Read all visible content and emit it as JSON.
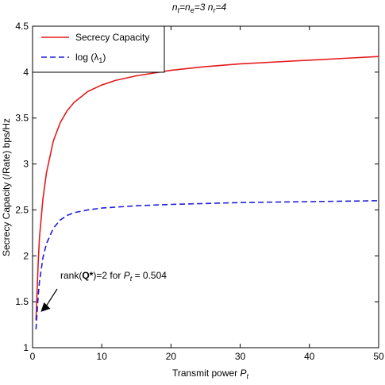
{
  "chart_data": {
    "type": "line",
    "title": "n_t=n_e=3  n_r=4",
    "title_parts": {
      "n1": "n",
      "s1": "t",
      "eq1": "=n",
      "s2": "e",
      "eq2": "=3   n",
      "s3": "r",
      "eq3": "=4"
    },
    "xlabel": "Transmit power",
    "xlabel_sym": "P",
    "xlabel_sub": "t",
    "ylabel": "Secrecy Capacity (/Rate) bps/Hz",
    "xlim": [
      0,
      50
    ],
    "ylim": [
      1,
      4.5
    ],
    "xticks": [
      "0",
      "10",
      "20",
      "30",
      "40",
      "50"
    ],
    "yticks": [
      "1",
      "1.5",
      "2",
      "2.5",
      "3",
      "3.5",
      "4",
      "4.5"
    ],
    "grid": false,
    "legend_position": "top-left",
    "series": [
      {
        "name": "Secrecy Capacity",
        "color": "#e41a1c",
        "style": "solid",
        "x": [
          0.5,
          0.8,
          1,
          1.5,
          2,
          3,
          4,
          5,
          6,
          8,
          10,
          12,
          15,
          20,
          25,
          30,
          35,
          40,
          45,
          50
        ],
        "y": [
          1.3,
          1.9,
          2.2,
          2.62,
          2.9,
          3.25,
          3.45,
          3.58,
          3.67,
          3.79,
          3.86,
          3.91,
          3.96,
          4.02,
          4.06,
          4.09,
          4.11,
          4.13,
          4.15,
          4.17
        ]
      },
      {
        "name": "log (λ_1)",
        "name_main": "log (λ",
        "name_sub": "1",
        "name_end": ")",
        "color": "#1f1fd6",
        "style": "dashed",
        "x": [
          0.5,
          0.8,
          1,
          1.5,
          2,
          3,
          4,
          5,
          6,
          8,
          10,
          12,
          15,
          20,
          25,
          30,
          35,
          40,
          45,
          50
        ],
        "y": [
          1.2,
          1.55,
          1.72,
          1.98,
          2.13,
          2.3,
          2.39,
          2.44,
          2.47,
          2.5,
          2.52,
          2.53,
          2.545,
          2.56,
          2.57,
          2.58,
          2.585,
          2.59,
          2.595,
          2.6
        ]
      }
    ],
    "annotation": {
      "text_pre": "rank(",
      "text_bold": "Q*",
      "text_mid": ")=2 for ",
      "text_sym": "P",
      "text_sub": "t",
      "text_post": " = 0.504",
      "point": [
        0.504,
        1.39
      ]
    }
  }
}
